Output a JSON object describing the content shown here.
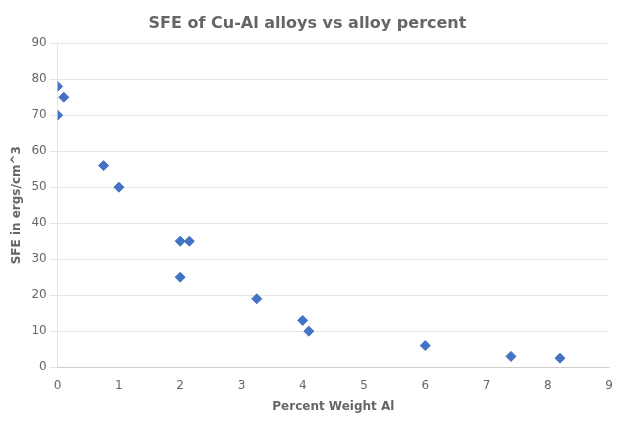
{
  "chart_data": {
    "type": "scatter",
    "title": "SFE of Cu-Al alloys vs alloy percent",
    "xlabel": "Percent Weight Al",
    "ylabel": "SFE in ergs/cm^3",
    "x": [
      0,
      0.1,
      0,
      0.75,
      1.0,
      2.0,
      2.15,
      2.0,
      3.25,
      4.0,
      4.1,
      6.0,
      7.4,
      8.2
    ],
    "y": [
      78,
      75,
      70,
      56,
      50,
      35,
      35,
      25,
      19,
      13,
      10,
      6,
      3,
      2.5
    ],
    "xlim": [
      0,
      9
    ],
    "ylim": [
      0,
      90
    ],
    "xticks": [
      0,
      1,
      2,
      3,
      4,
      5,
      6,
      7,
      8,
      9
    ],
    "yticks": [
      0,
      10,
      20,
      30,
      40,
      50,
      60,
      70,
      80,
      90
    ],
    "color": "#4472C4",
    "marker": "diamond",
    "grid": "y"
  }
}
